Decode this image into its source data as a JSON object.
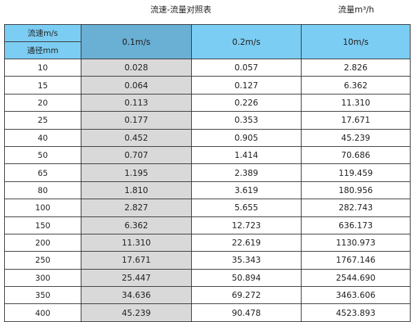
{
  "title": "流速-流量对照表",
  "unit_label": "流量m³/h",
  "header": {
    "velocity_label": "流速m/s",
    "diameter_label": "通径mm",
    "columns": [
      "0.1m/s",
      "0.2m/s",
      "10m/s"
    ]
  },
  "colors": {
    "header": "#7ccdf3",
    "header_highlight": "#6aafd4",
    "column_highlight": "#d9d9d9"
  },
  "rows": [
    {
      "dn": "10",
      "v": [
        "0.028",
        "0.057",
        "2.826"
      ]
    },
    {
      "dn": "15",
      "v": [
        "0.064",
        "0.127",
        "6.362"
      ]
    },
    {
      "dn": "20",
      "v": [
        "0.113",
        "0.226",
        "11.310"
      ]
    },
    {
      "dn": "25",
      "v": [
        "0.177",
        "0.353",
        "17.671"
      ]
    },
    {
      "dn": "40",
      "v": [
        "0.452",
        "0.905",
        "45.239"
      ]
    },
    {
      "dn": "50",
      "v": [
        "0.707",
        "1.414",
        "70.686"
      ]
    },
    {
      "dn": "65",
      "v": [
        "1.195",
        "2.389",
        "119.459"
      ]
    },
    {
      "dn": "80",
      "v": [
        "1.810",
        "3.619",
        "180.956"
      ]
    },
    {
      "dn": "100",
      "v": [
        "2.827",
        "5.655",
        "282.743"
      ]
    },
    {
      "dn": "150",
      "v": [
        "6.362",
        "12.723",
        "636.173"
      ]
    },
    {
      "dn": "200",
      "v": [
        "11.310",
        "22.619",
        "1130.973"
      ]
    },
    {
      "dn": "250",
      "v": [
        "17.671",
        "35.343",
        "1767.146"
      ]
    },
    {
      "dn": "300",
      "v": [
        "25.447",
        "50.894",
        "2544.690"
      ]
    },
    {
      "dn": "350",
      "v": [
        "34.636",
        "69.272",
        "3463.606"
      ]
    },
    {
      "dn": "400",
      "v": [
        "45.239",
        "90.478",
        "4523.893"
      ]
    }
  ]
}
